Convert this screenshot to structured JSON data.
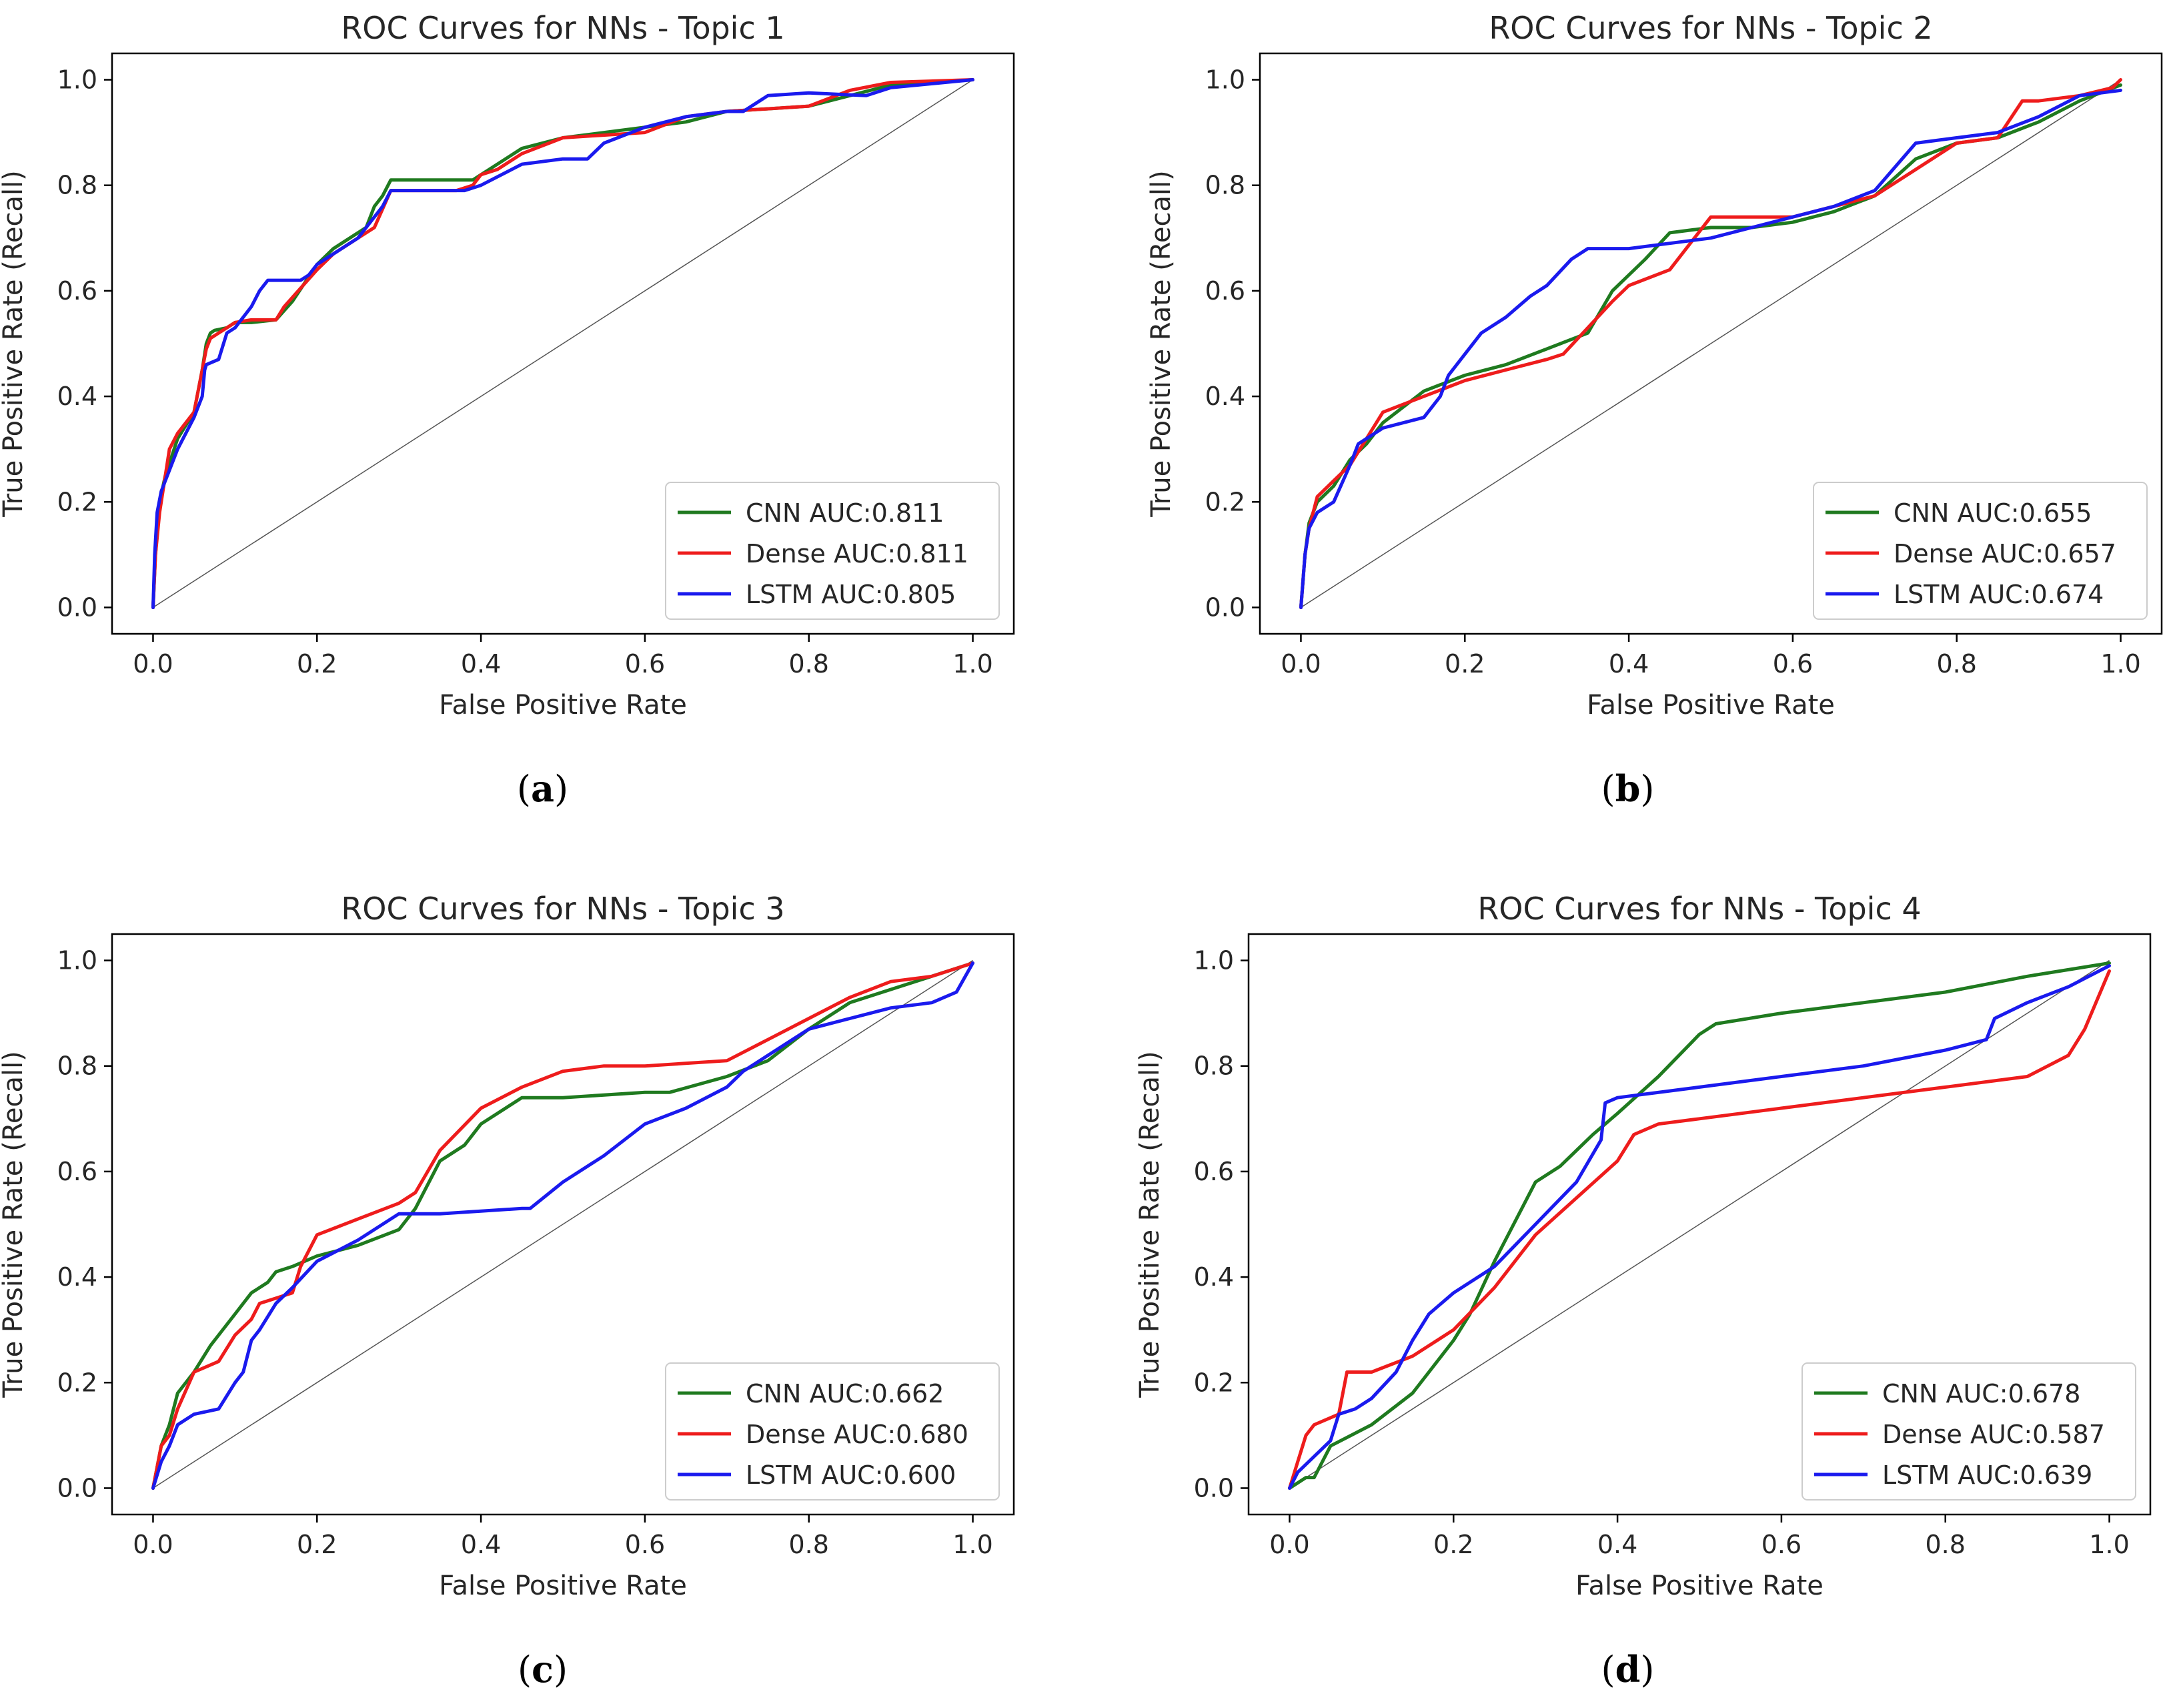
{
  "colors": {
    "cnn": "#1f7a1f",
    "dense": "#ee1c1c",
    "lstm": "#1a1aee",
    "diagonal": "#555555",
    "axis": "#000000"
  },
  "chart_data": [
    {
      "type": "line",
      "panel_label": "a",
      "title": "ROC Curves for NNs - Topic 1",
      "xlabel": "False Positive Rate",
      "ylabel": "True Positive Rate (Recall)",
      "xlim": [
        -0.05,
        1.05
      ],
      "ylim": [
        -0.05,
        1.05
      ],
      "xticks": [
        "0.0",
        "0.2",
        "0.4",
        "0.6",
        "0.8",
        "1.0"
      ],
      "yticks": [
        "0.0",
        "0.2",
        "0.4",
        "0.6",
        "0.8",
        "1.0"
      ],
      "legend_position": "lower-right",
      "series": [
        {
          "name": "CNN",
          "legend": "CNN AUC:0.811",
          "color_key": "cnn",
          "x": [
            0,
            0.003,
            0.008,
            0.015,
            0.03,
            0.05,
            0.06,
            0.065,
            0.07,
            0.075,
            0.09,
            0.1,
            0.12,
            0.15,
            0.17,
            0.2,
            0.22,
            0.26,
            0.27,
            0.28,
            0.29,
            0.3,
            0.35,
            0.39,
            0.4,
            0.45,
            0.5,
            0.6,
            0.65,
            0.7,
            0.8,
            0.9,
            1.0
          ],
          "y": [
            0,
            0.1,
            0.2,
            0.25,
            0.32,
            0.37,
            0.45,
            0.5,
            0.52,
            0.525,
            0.53,
            0.54,
            0.54,
            0.545,
            0.58,
            0.65,
            0.68,
            0.72,
            0.76,
            0.78,
            0.81,
            0.81,
            0.81,
            0.81,
            0.82,
            0.87,
            0.89,
            0.91,
            0.92,
            0.94,
            0.95,
            0.99,
            1.0
          ]
        },
        {
          "name": "Dense",
          "legend": "Dense AUC:0.811",
          "color_key": "dense",
          "x": [
            0,
            0.003,
            0.008,
            0.015,
            0.02,
            0.03,
            0.05,
            0.06,
            0.065,
            0.07,
            0.08,
            0.1,
            0.12,
            0.15,
            0.16,
            0.2,
            0.22,
            0.25,
            0.27,
            0.29,
            0.3,
            0.35,
            0.37,
            0.39,
            0.4,
            0.42,
            0.45,
            0.5,
            0.6,
            0.65,
            0.7,
            0.8,
            0.85,
            0.9,
            1.0
          ],
          "y": [
            0,
            0.1,
            0.18,
            0.25,
            0.3,
            0.33,
            0.37,
            0.45,
            0.49,
            0.51,
            0.52,
            0.54,
            0.545,
            0.545,
            0.57,
            0.64,
            0.67,
            0.7,
            0.72,
            0.79,
            0.79,
            0.79,
            0.79,
            0.8,
            0.82,
            0.83,
            0.86,
            0.89,
            0.9,
            0.93,
            0.94,
            0.95,
            0.98,
            0.995,
            1.0
          ]
        },
        {
          "name": "LSTM",
          "legend": "LSTM AUC:0.805",
          "color_key": "lstm",
          "x": [
            0,
            0.002,
            0.005,
            0.01,
            0.02,
            0.03,
            0.05,
            0.06,
            0.063,
            0.065,
            0.08,
            0.09,
            0.1,
            0.12,
            0.13,
            0.14,
            0.18,
            0.19,
            0.2,
            0.22,
            0.25,
            0.28,
            0.29,
            0.3,
            0.35,
            0.38,
            0.4,
            0.45,
            0.5,
            0.53,
            0.55,
            0.6,
            0.65,
            0.7,
            0.72,
            0.75,
            0.8,
            0.87,
            0.9,
            1.0
          ],
          "y": [
            0,
            0.1,
            0.18,
            0.22,
            0.26,
            0.3,
            0.36,
            0.4,
            0.45,
            0.46,
            0.47,
            0.52,
            0.53,
            0.57,
            0.6,
            0.62,
            0.62,
            0.63,
            0.65,
            0.67,
            0.7,
            0.76,
            0.79,
            0.79,
            0.79,
            0.79,
            0.8,
            0.84,
            0.85,
            0.85,
            0.88,
            0.91,
            0.93,
            0.94,
            0.94,
            0.97,
            0.975,
            0.97,
            0.985,
            1.0
          ]
        }
      ]
    },
    {
      "type": "line",
      "panel_label": "b",
      "title": "ROC Curves for NNs - Topic 2",
      "xlabel": "False Positive Rate",
      "ylabel": "True Positive Rate (Recall)",
      "xlim": [
        -0.05,
        1.05
      ],
      "ylim": [
        -0.05,
        1.05
      ],
      "xticks": [
        "0.0",
        "0.2",
        "0.4",
        "0.6",
        "0.8",
        "1.0"
      ],
      "yticks": [
        "0.0",
        "0.2",
        "0.4",
        "0.6",
        "0.8",
        "1.0"
      ],
      "legend_position": "lower-right",
      "series": [
        {
          "name": "CNN",
          "legend": "CNN AUC:0.655",
          "color_key": "cnn",
          "x": [
            0,
            0.005,
            0.01,
            0.02,
            0.04,
            0.06,
            0.08,
            0.1,
            0.15,
            0.2,
            0.25,
            0.3,
            0.35,
            0.38,
            0.42,
            0.45,
            0.5,
            0.55,
            0.6,
            0.65,
            0.7,
            0.75,
            0.8,
            0.85,
            0.9,
            0.95,
            1.0
          ],
          "y": [
            0,
            0.1,
            0.16,
            0.2,
            0.23,
            0.28,
            0.31,
            0.35,
            0.41,
            0.44,
            0.46,
            0.49,
            0.52,
            0.6,
            0.66,
            0.71,
            0.72,
            0.72,
            0.73,
            0.75,
            0.78,
            0.85,
            0.88,
            0.89,
            0.92,
            0.96,
            0.99
          ]
        },
        {
          "name": "Dense",
          "legend": "Dense AUC:0.657",
          "color_key": "dense",
          "x": [
            0,
            0.005,
            0.01,
            0.02,
            0.04,
            0.06,
            0.08,
            0.1,
            0.15,
            0.2,
            0.25,
            0.3,
            0.32,
            0.35,
            0.38,
            0.4,
            0.45,
            0.48,
            0.5,
            0.6,
            0.65,
            0.7,
            0.75,
            0.8,
            0.85,
            0.88,
            0.9,
            0.95,
            0.99,
            1.0
          ],
          "y": [
            0,
            0.1,
            0.15,
            0.21,
            0.24,
            0.27,
            0.32,
            0.37,
            0.4,
            0.43,
            0.45,
            0.47,
            0.48,
            0.53,
            0.58,
            0.61,
            0.64,
            0.7,
            0.74,
            0.74,
            0.76,
            0.78,
            0.83,
            0.88,
            0.89,
            0.96,
            0.96,
            0.97,
            0.985,
            1.0
          ]
        },
        {
          "name": "LSTM",
          "legend": "LSTM AUC:0.674",
          "color_key": "lstm",
          "x": [
            0,
            0.005,
            0.01,
            0.02,
            0.04,
            0.06,
            0.07,
            0.09,
            0.1,
            0.15,
            0.17,
            0.18,
            0.2,
            0.22,
            0.25,
            0.28,
            0.3,
            0.33,
            0.35,
            0.4,
            0.45,
            0.5,
            0.55,
            0.6,
            0.65,
            0.7,
            0.75,
            0.8,
            0.85,
            0.9,
            0.95,
            1.0
          ],
          "y": [
            0,
            0.1,
            0.15,
            0.18,
            0.2,
            0.27,
            0.31,
            0.33,
            0.34,
            0.36,
            0.4,
            0.44,
            0.48,
            0.52,
            0.55,
            0.59,
            0.61,
            0.66,
            0.68,
            0.68,
            0.69,
            0.7,
            0.72,
            0.74,
            0.76,
            0.79,
            0.88,
            0.89,
            0.9,
            0.93,
            0.97,
            0.98
          ]
        }
      ]
    },
    {
      "type": "line",
      "panel_label": "c",
      "title": "ROC Curves for NNs - Topic 3",
      "xlabel": "False Positive Rate",
      "ylabel": "True Positive Rate (Recall)",
      "xlim": [
        -0.05,
        1.05
      ],
      "ylim": [
        -0.05,
        1.05
      ],
      "xticks": [
        "0.0",
        "0.2",
        "0.4",
        "0.6",
        "0.8",
        "1.0"
      ],
      "yticks": [
        "0.0",
        "0.2",
        "0.4",
        "0.6",
        "0.8",
        "1.0"
      ],
      "legend_position": "lower-right",
      "series": [
        {
          "name": "CNN",
          "legend": "CNN AUC:0.662",
          "color_key": "cnn",
          "x": [
            0,
            0.01,
            0.02,
            0.03,
            0.05,
            0.07,
            0.1,
            0.12,
            0.14,
            0.15,
            0.17,
            0.2,
            0.25,
            0.3,
            0.32,
            0.35,
            0.38,
            0.4,
            0.45,
            0.5,
            0.6,
            0.63,
            0.7,
            0.75,
            0.8,
            0.85,
            1.0
          ],
          "y": [
            0,
            0.08,
            0.12,
            0.18,
            0.22,
            0.27,
            0.33,
            0.37,
            0.39,
            0.41,
            0.42,
            0.44,
            0.46,
            0.49,
            0.53,
            0.62,
            0.65,
            0.69,
            0.74,
            0.74,
            0.75,
            0.75,
            0.78,
            0.81,
            0.87,
            0.92,
            0.995
          ]
        },
        {
          "name": "Dense",
          "legend": "Dense AUC:0.680",
          "color_key": "dense",
          "x": [
            0,
            0.01,
            0.02,
            0.03,
            0.05,
            0.08,
            0.1,
            0.12,
            0.13,
            0.15,
            0.17,
            0.18,
            0.2,
            0.25,
            0.3,
            0.32,
            0.35,
            0.4,
            0.45,
            0.5,
            0.55,
            0.6,
            0.7,
            0.75,
            0.8,
            0.85,
            0.9,
            0.95,
            1.0
          ],
          "y": [
            0,
            0.08,
            0.1,
            0.15,
            0.22,
            0.24,
            0.29,
            0.32,
            0.35,
            0.36,
            0.37,
            0.42,
            0.48,
            0.51,
            0.54,
            0.56,
            0.64,
            0.72,
            0.76,
            0.79,
            0.8,
            0.8,
            0.81,
            0.85,
            0.89,
            0.93,
            0.96,
            0.97,
            0.995
          ]
        },
        {
          "name": "LSTM",
          "legend": "LSTM AUC:0.600",
          "color_key": "lstm",
          "x": [
            0,
            0.01,
            0.02,
            0.03,
            0.05,
            0.08,
            0.1,
            0.11,
            0.12,
            0.13,
            0.15,
            0.17,
            0.2,
            0.25,
            0.3,
            0.35,
            0.4,
            0.45,
            0.46,
            0.5,
            0.55,
            0.6,
            0.65,
            0.7,
            0.72,
            0.75,
            0.8,
            0.85,
            0.9,
            0.95,
            0.98,
            1.0
          ],
          "y": [
            0,
            0.05,
            0.08,
            0.12,
            0.14,
            0.15,
            0.2,
            0.22,
            0.28,
            0.3,
            0.35,
            0.38,
            0.43,
            0.47,
            0.52,
            0.52,
            0.525,
            0.53,
            0.53,
            0.58,
            0.63,
            0.69,
            0.72,
            0.76,
            0.79,
            0.82,
            0.87,
            0.89,
            0.91,
            0.92,
            0.94,
            0.995
          ]
        }
      ]
    },
    {
      "type": "line",
      "panel_label": "d",
      "title": "ROC Curves for NNs - Topic 4",
      "xlabel": "False Positive Rate",
      "ylabel": "True Positive Rate (Recall)",
      "xlim": [
        -0.05,
        1.05
      ],
      "ylim": [
        -0.05,
        1.05
      ],
      "xticks": [
        "0.0",
        "0.2",
        "0.4",
        "0.6",
        "0.8",
        "1.0"
      ],
      "yticks": [
        "0.0",
        "0.2",
        "0.4",
        "0.6",
        "0.8",
        "1.0"
      ],
      "legend_position": "lower-right",
      "series": [
        {
          "name": "CNN",
          "legend": "CNN AUC:0.678",
          "color_key": "cnn",
          "x": [
            0,
            0.02,
            0.03,
            0.04,
            0.05,
            0.1,
            0.15,
            0.17,
            0.2,
            0.22,
            0.25,
            0.3,
            0.33,
            0.35,
            0.37,
            0.4,
            0.45,
            0.5,
            0.52,
            0.6,
            0.7,
            0.8,
            0.9,
            1.0
          ],
          "y": [
            0,
            0.02,
            0.02,
            0.05,
            0.08,
            0.12,
            0.18,
            0.22,
            0.28,
            0.33,
            0.43,
            0.58,
            0.61,
            0.64,
            0.67,
            0.71,
            0.78,
            0.86,
            0.88,
            0.9,
            0.92,
            0.94,
            0.97,
            0.995
          ]
        },
        {
          "name": "Dense",
          "legend": "Dense AUC:0.587",
          "color_key": "dense",
          "x": [
            0,
            0.01,
            0.02,
            0.03,
            0.06,
            0.07,
            0.1,
            0.15,
            0.2,
            0.25,
            0.3,
            0.35,
            0.4,
            0.42,
            0.45,
            0.5,
            0.6,
            0.7,
            0.8,
            0.9,
            0.95,
            0.97,
            1.0
          ],
          "y": [
            0,
            0.05,
            0.1,
            0.12,
            0.14,
            0.22,
            0.22,
            0.25,
            0.3,
            0.38,
            0.48,
            0.55,
            0.62,
            0.67,
            0.69,
            0.7,
            0.72,
            0.74,
            0.76,
            0.78,
            0.82,
            0.87,
            0.98
          ]
        },
        {
          "name": "LSTM",
          "legend": "LSTM AUC:0.639",
          "color_key": "lstm",
          "x": [
            0,
            0.01,
            0.03,
            0.05,
            0.06,
            0.08,
            0.1,
            0.13,
            0.15,
            0.17,
            0.2,
            0.25,
            0.3,
            0.35,
            0.38,
            0.385,
            0.4,
            0.5,
            0.6,
            0.7,
            0.8,
            0.85,
            0.86,
            0.9,
            0.95,
            1.0
          ],
          "y": [
            0,
            0.03,
            0.06,
            0.09,
            0.14,
            0.15,
            0.17,
            0.22,
            0.28,
            0.33,
            0.37,
            0.42,
            0.5,
            0.58,
            0.66,
            0.73,
            0.74,
            0.76,
            0.78,
            0.8,
            0.83,
            0.85,
            0.89,
            0.92,
            0.95,
            0.99
          ]
        }
      ]
    }
  ]
}
